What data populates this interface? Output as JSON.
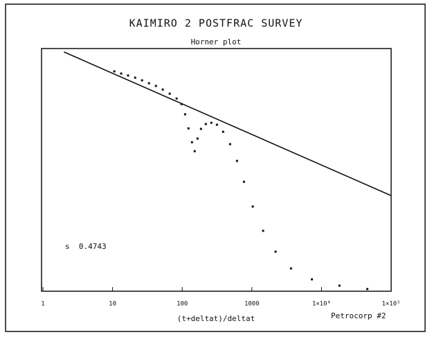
{
  "chart_data": {
    "type": "scatter",
    "title": "KAIMIRO 2 POSTFRAC SURVEY",
    "subtitle": "Horner plot",
    "x_label": "(t+deltat)/deltat",
    "annotation": "s  0.4743",
    "footer": "Petrocorp #2",
    "xlog": true,
    "xlim": [
      1,
      100000
    ],
    "ylim": [
      0,
      100
    ],
    "xticks": [
      1,
      10,
      100,
      1000,
      {
        "value": 10000,
        "label": "1×10⁴"
      },
      {
        "value": 100000,
        "label": "1×10⁵"
      }
    ],
    "series": [
      {
        "type": "scatter",
        "color": "#111111",
        "x": [
          10.6,
          13.3,
          16.7,
          21.1,
          26.5,
          33.3,
          41.9,
          52.6,
          66.2,
          83.2,
          97.7,
          110,
          123,
          138,
          151,
          166,
          186,
          218,
          262,
          315,
          387,
          487,
          612,
          770,
          1030,
          1450,
          2190,
          3650,
          7280,
          18100,
          45500
        ],
        "values": [
          90.6,
          89.7,
          88.9,
          88.0,
          86.9,
          85.7,
          84.6,
          83.1,
          81.4,
          79.4,
          77.1,
          72.9,
          67.1,
          61.4,
          57.7,
          62.9,
          66.9,
          68.9,
          69.4,
          68.6,
          65.7,
          60.6,
          53.7,
          45.1,
          34.9,
          24.9,
          16.3,
          9.4,
          4.9,
          2.3,
          0.9
        ]
      },
      {
        "type": "line",
        "color": "#111111",
        "x": [
          2,
          100000
        ],
        "values": [
          98.6,
          39.4
        ]
      }
    ]
  }
}
